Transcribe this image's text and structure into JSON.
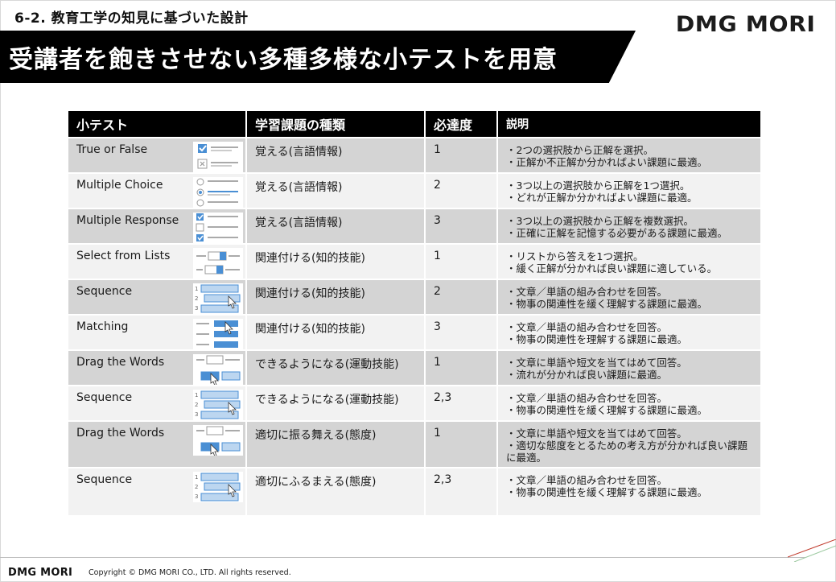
{
  "header": {
    "section": "6-2. 教育工学の知見に基づいた設計",
    "brand": "DMG MORI",
    "title": "受講者を飽きさせない多種多様な小テストを用意"
  },
  "table": {
    "columns": [
      "小テスト",
      "学習課題の種類",
      "必達度",
      "説明"
    ],
    "rows": [
      {
        "name": "True or False",
        "icon": "true-false-icon",
        "type": "覚える(言語情報)",
        "level": "1",
        "desc": [
          "・2つの選択肢から正解を選択。",
          "・正解か不正解か分かればよい課題に最適。"
        ]
      },
      {
        "name": "Multiple Choice",
        "icon": "multiple-choice-icon",
        "type": "覚える(言語情報)",
        "level": "2",
        "desc": [
          "・3つ以上の選択肢から正解を1つ選択。",
          "・どれが正解か分かればよい課題に最適。"
        ]
      },
      {
        "name": "Multiple Response",
        "icon": "multiple-response-icon",
        "type": "覚える(言語情報)",
        "level": "3",
        "desc": [
          "・3つ以上の選択肢から正解を複数選択。",
          "・正確に正解を記憶する必要がある課題に最適。"
        ]
      },
      {
        "name": "Select from Lists",
        "icon": "select-list-icon",
        "type": "関連付ける(知的技能)",
        "level": "1",
        "desc": [
          "・リストから答えを1つ選択。",
          "・緩く正解が分かれば良い課題に適している。"
        ]
      },
      {
        "name": "Sequence",
        "icon": "sequence-icon",
        "type": "関連付ける(知的技能)",
        "level": "2",
        "desc": [
          "・文章／単語の組み合わせを回答。",
          "・物事の関連性を緩く理解する課題に最適。"
        ]
      },
      {
        "name": "Matching",
        "icon": "matching-icon",
        "type": "関連付ける(知的技能)",
        "level": "3",
        "desc": [
          "・文章／単語の組み合わせを回答。",
          "・物事の関連性を理解する課題に最適。"
        ]
      },
      {
        "name": "Drag the Words",
        "icon": "drag-words-icon",
        "type": "できるようになる(運動技能)",
        "level": "1",
        "desc": [
          "・文章に単語や短文を当てはめて回答。",
          "・流れが分かれば良い課題に最適。"
        ]
      },
      {
        "name": "Sequence",
        "icon": "sequence-icon",
        "type": "できるようになる(運動技能)",
        "level": "2,3",
        "desc": [
          "・文章／単語の組み合わせを回答。",
          "・物事の関連性を緩く理解する課題に最適。"
        ]
      },
      {
        "name": "Drag the Words",
        "icon": "drag-words-icon",
        "type": "適切に振る舞える(態度)",
        "level": "1",
        "desc": [
          "・文章に単語や短文を当てはめて回答。",
          "・適切な態度をとるための考え方が分かれば良い課題に最適。"
        ]
      },
      {
        "name": "Sequence",
        "icon": "sequence-icon",
        "type": "適切にふるまえる(態度)",
        "level": "2,3",
        "desc": [
          "・文章／単語の組み合わせを回答。",
          "・物事の関連性を緩く理解する課題に最適。"
        ]
      }
    ]
  },
  "footer": {
    "brand": "DMG MORI",
    "copyright": "Copyright © DMG MORI CO., LTD. All rights reserved."
  },
  "colors": {
    "header_bg": "#000000",
    "row_shade": "#d4d4d4",
    "row_plain": "#f2f2f2",
    "accent_blue": "#4a8fd4",
    "accent_red": "#c0392b"
  }
}
